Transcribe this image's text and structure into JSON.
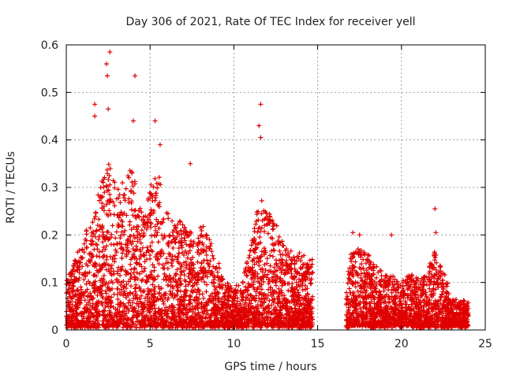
{
  "chart_data": {
    "type": "scatter",
    "title": "Day 306 of 2021, Rate Of TEC Index for receiver yell",
    "xlabel": "GPS time / hours",
    "ylabel": "ROTI / TECUs",
    "xlim": [
      0,
      25
    ],
    "ylim": [
      0,
      0.6
    ],
    "xticks": [
      0,
      5,
      10,
      15,
      20,
      25
    ],
    "yticks": [
      0,
      0.1,
      0.2,
      0.3,
      0.4,
      0.5,
      0.6
    ],
    "grid": true,
    "marker": "+",
    "color": "#e00000",
    "segments": [
      {
        "start": 0.0,
        "end": 14.7
      },
      {
        "start": 16.7,
        "end": 24.0
      }
    ],
    "envelope": [
      [
        0.0,
        0.1
      ],
      [
        0.5,
        0.15
      ],
      [
        1.0,
        0.18
      ],
      [
        1.5,
        0.26
      ],
      [
        2.0,
        0.3
      ],
      [
        2.5,
        0.36
      ],
      [
        3.0,
        0.3
      ],
      [
        3.5,
        0.32
      ],
      [
        4.0,
        0.34
      ],
      [
        4.5,
        0.25
      ],
      [
        5.0,
        0.3
      ],
      [
        5.5,
        0.33
      ],
      [
        6.0,
        0.25
      ],
      [
        6.5,
        0.24
      ],
      [
        7.0,
        0.22
      ],
      [
        7.5,
        0.2
      ],
      [
        8.0,
        0.22
      ],
      [
        8.5,
        0.2
      ],
      [
        9.0,
        0.15
      ],
      [
        9.5,
        0.1
      ],
      [
        10.0,
        0.09
      ],
      [
        10.5,
        0.1
      ],
      [
        11.0,
        0.18
      ],
      [
        11.5,
        0.28
      ],
      [
        12.0,
        0.25
      ],
      [
        12.5,
        0.23
      ],
      [
        13.0,
        0.18
      ],
      [
        13.5,
        0.16
      ],
      [
        14.0,
        0.16
      ],
      [
        14.5,
        0.15
      ],
      [
        16.7,
        0.12
      ],
      [
        17.0,
        0.16
      ],
      [
        17.5,
        0.18
      ],
      [
        18.0,
        0.16
      ],
      [
        18.5,
        0.13
      ],
      [
        19.0,
        0.12
      ],
      [
        19.5,
        0.11
      ],
      [
        20.0,
        0.1
      ],
      [
        20.5,
        0.12
      ],
      [
        21.0,
        0.11
      ],
      [
        21.5,
        0.12
      ],
      [
        22.0,
        0.17
      ],
      [
        22.5,
        0.12
      ],
      [
        23.0,
        0.07
      ],
      [
        23.5,
        0.06
      ],
      [
        24.0,
        0.06
      ]
    ],
    "outliers": [
      [
        1.7,
        0.475
      ],
      [
        1.7,
        0.45
      ],
      [
        2.4,
        0.56
      ],
      [
        2.45,
        0.535
      ],
      [
        2.6,
        0.585
      ],
      [
        2.5,
        0.465
      ],
      [
        4.1,
        0.535
      ],
      [
        4.0,
        0.44
      ],
      [
        5.3,
        0.44
      ],
      [
        5.6,
        0.39
      ],
      [
        7.4,
        0.35
      ],
      [
        11.6,
        0.475
      ],
      [
        11.5,
        0.43
      ],
      [
        11.6,
        0.405
      ],
      [
        17.1,
        0.205
      ],
      [
        17.5,
        0.2
      ],
      [
        19.4,
        0.2
      ],
      [
        22.0,
        0.255
      ],
      [
        22.05,
        0.205
      ]
    ]
  }
}
